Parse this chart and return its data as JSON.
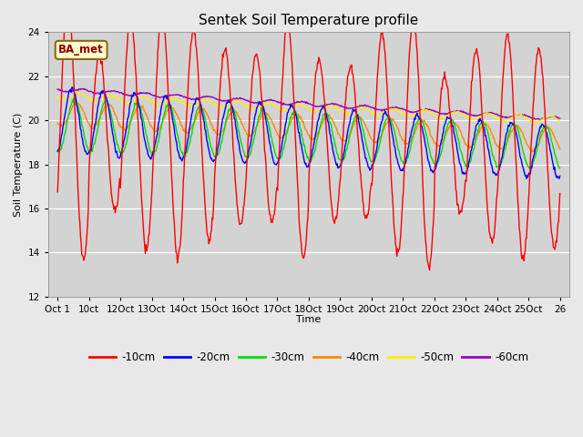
{
  "title": "Sentek Soil Temperature profile",
  "xlabel": "Time",
  "ylabel": "Soil Temperature (C)",
  "ylim": [
    12,
    24
  ],
  "yticks": [
    12,
    14,
    16,
    18,
    20,
    22,
    24
  ],
  "annotation": "BA_met",
  "background_color": "#e8e8e8",
  "plot_bg_color": "#d3d3d3",
  "legend_entries": [
    "-10cm",
    "-20cm",
    "-30cm",
    "-40cm",
    "-50cm",
    "-60cm"
  ],
  "line_colors": [
    "#ff0000",
    "#0000ff",
    "#00dd00",
    "#ff8800",
    "#ffee00",
    "#9900bb"
  ],
  "xtick_labels": [
    "Oct 1",
    "10ct",
    "12Oct",
    "13Oct",
    "14Oct",
    "15Oct",
    "16Oct",
    "17Oct",
    "18Oct",
    "19Oct",
    "20Oct",
    "21Oct",
    "22Oct",
    "23Oct",
    "24Oct",
    "25Oct",
    "26"
  ],
  "seed": 0
}
